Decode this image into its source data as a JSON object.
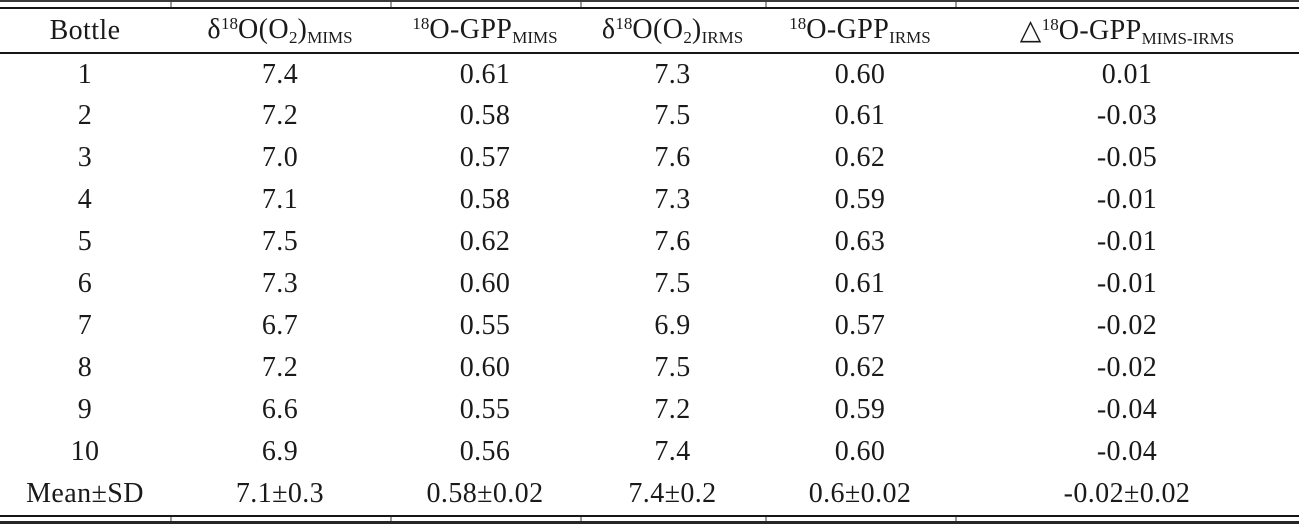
{
  "table": {
    "columns": [
      {
        "id": "bottle",
        "label": "Bottle",
        "label_parts": [
          {
            "t": "Bottle"
          }
        ]
      },
      {
        "id": "d18O-O2-MIMS",
        "label": "δ18O(O2)MIMS",
        "label_parts": [
          {
            "t": "δ"
          },
          {
            "t": "18",
            "s": "sup"
          },
          {
            "t": "O(O"
          },
          {
            "t": "2",
            "s": "sub"
          },
          {
            "t": ")"
          },
          {
            "t": "MIMS",
            "s": "sub"
          }
        ]
      },
      {
        "id": "18O-GPP-MIMS",
        "label": "18O-GPPMIMS",
        "label_parts": [
          {
            "t": "18",
            "s": "sup"
          },
          {
            "t": "O-GPP"
          },
          {
            "t": "MIMS",
            "s": "sub"
          }
        ]
      },
      {
        "id": "d18O-O2-IRMS",
        "label": "δ18O(O2)IRMS",
        "label_parts": [
          {
            "t": "δ"
          },
          {
            "t": "18",
            "s": "sup"
          },
          {
            "t": "O(O"
          },
          {
            "t": "2",
            "s": "sub"
          },
          {
            "t": ")"
          },
          {
            "t": "IRMS",
            "s": "sub"
          }
        ]
      },
      {
        "id": "18O-GPP-IRMS",
        "label": "18O-GPPIRMS",
        "label_parts": [
          {
            "t": "18",
            "s": "sup"
          },
          {
            "t": "O-GPP"
          },
          {
            "t": "IRMS",
            "s": "sub"
          }
        ]
      },
      {
        "id": "delta-18O-GPP-MIMS-IRMS",
        "label": "△18O-GPPMIMS-IRMS",
        "label_parts": [
          {
            "t": "△"
          },
          {
            "t": "18",
            "s": "sup"
          },
          {
            "t": "O-GPP"
          },
          {
            "t": "MIMS-IRMS",
            "s": "sub"
          }
        ]
      }
    ],
    "rows": [
      [
        "1",
        "7.4",
        "0.61",
        "7.3",
        "0.60",
        "0.01"
      ],
      [
        "2",
        "7.2",
        "0.58",
        "7.5",
        "0.61",
        "-0.03"
      ],
      [
        "3",
        "7.0",
        "0.57",
        "7.6",
        "0.62",
        "-0.05"
      ],
      [
        "4",
        "7.1",
        "0.58",
        "7.3",
        "0.59",
        "-0.01"
      ],
      [
        "5",
        "7.5",
        "0.62",
        "7.6",
        "0.63",
        "-0.01"
      ],
      [
        "6",
        "7.3",
        "0.60",
        "7.5",
        "0.61",
        "-0.01"
      ],
      [
        "7",
        "6.7",
        "0.55",
        "6.9",
        "0.57",
        "-0.02"
      ],
      [
        "8",
        "7.2",
        "0.60",
        "7.5",
        "0.62",
        "-0.02"
      ],
      [
        "9",
        "6.6",
        "0.55",
        "7.2",
        "0.59",
        "-0.04"
      ],
      [
        "10",
        "6.9",
        "0.56",
        "7.4",
        "0.60",
        "-0.04"
      ]
    ],
    "summary_row": [
      "Mean±SD",
      "7.1±0.3",
      "0.58±0.02",
      "7.4±0.2",
      "0.6±0.02",
      "-0.02±0.02"
    ],
    "text_color": "#1a1a1a",
    "rule_color": "#161616"
  }
}
